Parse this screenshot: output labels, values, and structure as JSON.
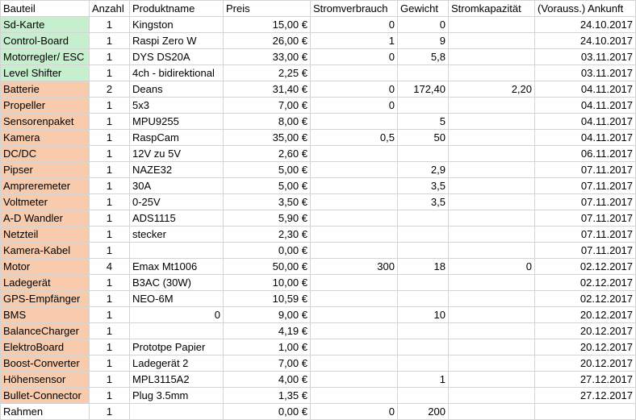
{
  "headers": [
    "Bauteil",
    "Anzahl",
    "Produktname",
    "Preis",
    "Stromverbrauch",
    "Gewicht",
    "Stromkapazität",
    "(Vorauss.) Ankunft"
  ],
  "colors": {
    "green": "#c6efce",
    "orange": "#f8cbad",
    "grid": "#d4d4d4"
  },
  "rows": [
    {
      "bauteil": "Sd-Karte",
      "anzahl": "1",
      "produkt": "Kingston",
      "preis": "15,00 €",
      "strom": "0",
      "gewicht": "0",
      "kapazitaet": "",
      "ankunft": "24.10.2017",
      "color": "green"
    },
    {
      "bauteil": "Control-Board",
      "anzahl": "1",
      "produkt": "Raspi Zero W",
      "preis": "26,00 €",
      "strom": "1",
      "gewicht": "9",
      "kapazitaet": "",
      "ankunft": "24.10.2017",
      "color": "green"
    },
    {
      "bauteil": "Motorregler/ ESC",
      "anzahl": "1",
      "produkt": "DYS DS20A",
      "preis": "33,00 €",
      "strom": "0",
      "gewicht": "5,8",
      "kapazitaet": "",
      "ankunft": "03.11.2017",
      "color": "green"
    },
    {
      "bauteil": "Level Shifter",
      "anzahl": "1",
      "produkt": "4ch - bidirektional",
      "preis": "2,25 €",
      "strom": "",
      "gewicht": "",
      "kapazitaet": "",
      "ankunft": "03.11.2017",
      "color": "green"
    },
    {
      "bauteil": "Batterie",
      "anzahl": "2",
      "produkt": "Deans",
      "preis": "31,40 €",
      "strom": "0",
      "gewicht": "172,40",
      "kapazitaet": "2,20",
      "ankunft": "04.11.2017",
      "color": "orange"
    },
    {
      "bauteil": "Propeller",
      "anzahl": "1",
      "produkt": "5x3",
      "preis": "7,00 €",
      "strom": "0",
      "gewicht": "",
      "kapazitaet": "",
      "ankunft": "04.11.2017",
      "color": "orange"
    },
    {
      "bauteil": "Sensorenpaket",
      "anzahl": "1",
      "produkt": "MPU9255",
      "preis": "8,00 €",
      "strom": "",
      "gewicht": "5",
      "kapazitaet": "",
      "ankunft": "04.11.2017",
      "color": "orange"
    },
    {
      "bauteil": "Kamera",
      "anzahl": "1",
      "produkt": "RaspCam",
      "preis": "35,00 €",
      "strom": "0,5",
      "gewicht": "50",
      "kapazitaet": "",
      "ankunft": "04.11.2017",
      "color": "orange"
    },
    {
      "bauteil": "DC/DC",
      "anzahl": "1",
      "produkt": "12V zu 5V",
      "preis": "2,60 €",
      "strom": "",
      "gewicht": "",
      "kapazitaet": "",
      "ankunft": "06.11.2017",
      "color": "orange"
    },
    {
      "bauteil": "Pipser",
      "anzahl": "1",
      "produkt": "NAZE32",
      "preis": "5,00 €",
      "strom": "",
      "gewicht": "2,9",
      "kapazitaet": "",
      "ankunft": "07.11.2017",
      "color": "orange"
    },
    {
      "bauteil": "Ampreremeter",
      "anzahl": "1",
      "produkt": "30A",
      "preis": "5,00 €",
      "strom": "",
      "gewicht": "3,5",
      "kapazitaet": "",
      "ankunft": "07.11.2017",
      "color": "orange"
    },
    {
      "bauteil": "Voltmeter",
      "anzahl": "1",
      "produkt": "0-25V",
      "preis": "3,50 €",
      "strom": "",
      "gewicht": "3,5",
      "kapazitaet": "",
      "ankunft": "07.11.2017",
      "color": "orange"
    },
    {
      "bauteil": "A-D Wandler",
      "anzahl": "1",
      "produkt": "ADS1115",
      "preis": "5,90 €",
      "strom": "",
      "gewicht": "",
      "kapazitaet": "",
      "ankunft": "07.11.2017",
      "color": "orange"
    },
    {
      "bauteil": "Netzteil",
      "anzahl": "1",
      "produkt": "stecker",
      "preis": "2,30 €",
      "strom": "",
      "gewicht": "",
      "kapazitaet": "",
      "ankunft": "07.11.2017",
      "color": "orange"
    },
    {
      "bauteil": "Kamera-Kabel",
      "anzahl": "1",
      "produkt": "",
      "preis": "0,00 €",
      "strom": "",
      "gewicht": "",
      "kapazitaet": "",
      "ankunft": "07.11.2017",
      "color": "orange"
    },
    {
      "bauteil": "Motor",
      "anzahl": "4",
      "produkt": "Emax Mt1006",
      "preis": "50,00 €",
      "strom": "300",
      "gewicht": "18",
      "kapazitaet": "0",
      "ankunft": "02.12.2017",
      "color": "orange"
    },
    {
      "bauteil": "Ladegerät",
      "anzahl": "1",
      "produkt": "B3AC (30W)",
      "preis": "10,00 €",
      "strom": "",
      "gewicht": "",
      "kapazitaet": "",
      "ankunft": "02.12.2017",
      "color": "orange"
    },
    {
      "bauteil": "GPS-Empfänger",
      "anzahl": "1",
      "produkt": "NEO-6M",
      "preis": "10,59 €",
      "strom": "",
      "gewicht": "",
      "kapazitaet": "",
      "ankunft": "02.12.2017",
      "color": "orange"
    },
    {
      "bauteil": "BMS",
      "anzahl": "1",
      "produkt": "0",
      "preis": "9,00 €",
      "strom": "",
      "gewicht": "10",
      "kapazitaet": "",
      "ankunft": "20.12.2017",
      "color": "orange",
      "produkt_align": "r"
    },
    {
      "bauteil": "BalanceCharger",
      "anzahl": "1",
      "produkt": "",
      "preis": "4,19 €",
      "strom": "",
      "gewicht": "",
      "kapazitaet": "",
      "ankunft": "20.12.2017",
      "color": "orange"
    },
    {
      "bauteil": "ElektroBoard",
      "anzahl": "1",
      "produkt": "Prototpe Papier",
      "preis": "1,00 €",
      "strom": "",
      "gewicht": "",
      "kapazitaet": "",
      "ankunft": "20.12.2017",
      "color": "orange"
    },
    {
      "bauteil": "Boost-Converter",
      "anzahl": "1",
      "produkt": "Ladegerät 2",
      "preis": "7,00 €",
      "strom": "",
      "gewicht": "",
      "kapazitaet": "",
      "ankunft": "20.12.2017",
      "color": "orange"
    },
    {
      "bauteil": "Höhensensor",
      "anzahl": "1",
      "produkt": "MPL3115A2",
      "preis": "4,00 €",
      "strom": "",
      "gewicht": "1",
      "kapazitaet": "",
      "ankunft": "27.12.2017",
      "color": "orange"
    },
    {
      "bauteil": "Bullet-Connector",
      "anzahl": "1",
      "produkt": "Plug 3.5mm",
      "preis": "1,35 €",
      "strom": "",
      "gewicht": "",
      "kapazitaet": "",
      "ankunft": "27.12.2017",
      "color": "orange"
    },
    {
      "bauteil": "Rahmen",
      "anzahl": "1",
      "produkt": "",
      "preis": "0,00 €",
      "strom": "0",
      "gewicht": "200",
      "kapazitaet": "",
      "ankunft": "",
      "color": "plain"
    }
  ]
}
